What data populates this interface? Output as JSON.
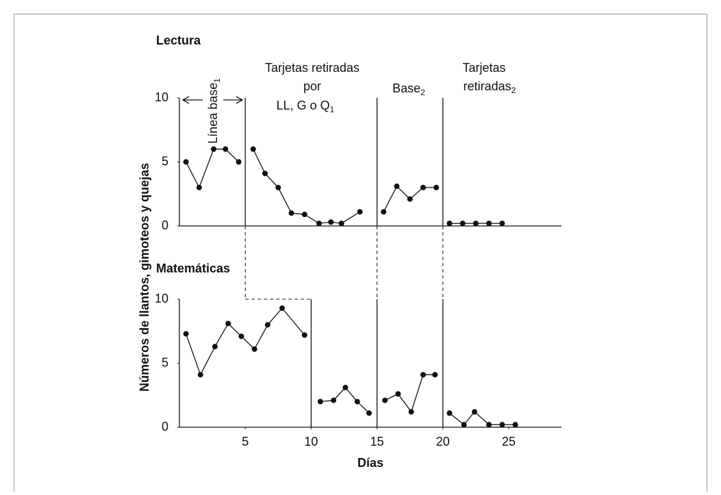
{
  "chart_data": [
    {
      "type": "line",
      "title": "Lectura",
      "x": [
        0.5,
        1.5,
        2.6,
        3.5,
        4.5,
        null,
        5.6,
        6.5,
        7.5,
        8.5,
        9.5,
        10.6,
        11.5,
        12.3,
        13.7,
        null,
        15.5,
        16.5,
        17.5,
        18.5,
        19.5,
        null,
        20.5,
        21.5,
        22.5,
        23.5,
        24.5
      ],
      "values": [
        5,
        3,
        6,
        6,
        5,
        null,
        6,
        4.1,
        3,
        1,
        0.9,
        0.2,
        0.3,
        0.2,
        1.1,
        null,
        1.1,
        3.1,
        2.1,
        3,
        3,
        null,
        0.2,
        0.2,
        0.2,
        0.2,
        0.2
      ],
      "xlim": [
        0,
        29
      ],
      "ylim": [
        0,
        10
      ],
      "yticks": [
        0,
        5,
        10
      ],
      "color": "#111111",
      "phase_lines": [
        5,
        15,
        20
      ],
      "phase_labels": [
        {
          "lines": [
            {
              "text": "Línea base",
              "sub": "1"
            }
          ]
        },
        {
          "lines": [
            {
              "text": "Tarjetas retiradas"
            },
            {
              "text": "por"
            },
            {
              "text": "LL, G o Q",
              "sub": "1"
            }
          ]
        },
        {
          "lines": [
            {
              "text": "Base",
              "sub": "2"
            }
          ]
        },
        {
          "lines": [
            {
              "text": "Tarjetas"
            },
            {
              "text": "retiradas",
              "sub": "2"
            }
          ]
        }
      ]
    },
    {
      "type": "line",
      "title": "Matemáticas",
      "x": [
        0.5,
        1.6,
        2.7,
        3.7,
        4.7,
        5.7,
        6.7,
        7.8,
        9.5,
        null,
        10.7,
        11.7,
        12.6,
        13.5,
        14.4,
        null,
        15.6,
        16.6,
        17.6,
        18.5,
        19.4,
        null,
        20.5,
        21.6,
        22.4,
        23.5,
        24.5,
        25.5
      ],
      "values": [
        7.3,
        4.1,
        6.3,
        8.1,
        7.1,
        6.1,
        8,
        9.3,
        7.2,
        null,
        2,
        2.1,
        3.1,
        2,
        1.1,
        null,
        2.1,
        2.6,
        1.2,
        4.1,
        4.1,
        null,
        1.1,
        0.2,
        1.2,
        0.2,
        0.2,
        0.2
      ],
      "xlim": [
        0,
        29
      ],
      "ylim": [
        0,
        10
      ],
      "yticks": [
        0,
        5,
        10
      ],
      "xticks": [
        5,
        10,
        15,
        20,
        25
      ],
      "color": "#111111",
      "phase_lines": [
        10,
        15,
        20
      ],
      "x_label": "Días"
    }
  ],
  "y_label": "Números de llantos, gimoteos y quejas"
}
